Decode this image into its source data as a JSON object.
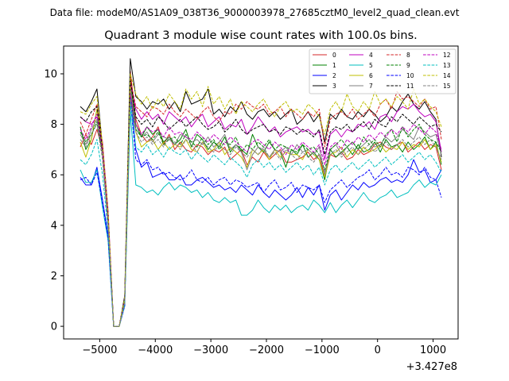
{
  "header": {
    "data_file": "Data file: modeM0/AS1A09_038T36_9000003978_27685cztM0_level2_quad_clean.evt"
  },
  "chart_data": {
    "type": "line",
    "title": "Quadrant 3 module wise count rates with 100.0s bins.",
    "xlabel": "",
    "ylabel": "",
    "x_offset_label": "+3.427e8",
    "xlim": [
      -5650,
      1450
    ],
    "ylim": [
      -0.5,
      11.1
    ],
    "xticks": [
      -5000,
      -4000,
      -3000,
      -2000,
      -1000,
      0,
      1000
    ],
    "xtick_labels": [
      "−5000",
      "−4000",
      "−3000",
      "−2000",
      "−1000",
      "0",
      "1000"
    ],
    "yticks": [
      0,
      2,
      4,
      6,
      8,
      10
    ],
    "ytick_labels": [
      "0",
      "2",
      "4",
      "6",
      "8",
      "10"
    ],
    "grid": false,
    "legend_position": "top-right",
    "legend_columns": 4,
    "x": [
      -5350,
      -5250,
      -5150,
      -5050,
      -4950,
      -4850,
      -4750,
      -4650,
      -4550,
      -4450,
      -4350,
      -4250,
      -4150,
      -4050,
      -3950,
      -3850,
      -3750,
      -3650,
      -3550,
      -3450,
      -3350,
      -3250,
      -3150,
      -3050,
      -2950,
      -2850,
      -2750,
      -2650,
      -2550,
      -2450,
      -2350,
      -2250,
      -2150,
      -2050,
      -1950,
      -1850,
      -1750,
      -1650,
      -1550,
      -1450,
      -1350,
      -1250,
      -1150,
      -1050,
      -950,
      -850,
      -750,
      -650,
      -550,
      -450,
      -350,
      -250,
      -150,
      -50,
      50,
      150,
      250,
      350,
      450,
      550,
      650,
      750,
      850,
      950,
      1050,
      1150
    ],
    "series": [
      {
        "name": "0",
        "color": "#d62728",
        "dash": "solid",
        "values": [
          7.1,
          7.6,
          7.2,
          7.8,
          7.0,
          4.2,
          0.0,
          0.0,
          1.0,
          10.1,
          8.2,
          7.6,
          7.3,
          7.5,
          7.9,
          7.2,
          7.6,
          7.0,
          7.3,
          7.0,
          6.9,
          7.2,
          7.1,
          6.8,
          7.0,
          6.9,
          7.1,
          6.6,
          6.8,
          7.0,
          6.4,
          6.7,
          6.5,
          6.9,
          6.6,
          6.8,
          7.0,
          6.5,
          6.5,
          6.6,
          6.7,
          6.9,
          6.6,
          6.8,
          5.9,
          6.8,
          6.7,
          6.9,
          6.6,
          6.7,
          7.0,
          6.8,
          6.9,
          7.2,
          7.3,
          7.1,
          7.0,
          7.2,
          7.3,
          6.9,
          7.1,
          7.3,
          7.0,
          7.2,
          7.1,
          6.2
        ]
      },
      {
        "name": "1",
        "color": "#008000",
        "dash": "solid",
        "values": [
          7.9,
          7.0,
          7.4,
          8.6,
          7.2,
          4.0,
          0.0,
          0.0,
          1.1,
          9.7,
          8.0,
          7.5,
          7.9,
          7.6,
          7.8,
          7.3,
          7.5,
          7.2,
          7.4,
          7.8,
          7.1,
          7.6,
          7.4,
          7.0,
          7.3,
          7.1,
          7.5,
          6.9,
          7.2,
          7.0,
          6.8,
          7.6,
          7.1,
          6.9,
          7.3,
          7.0,
          6.9,
          6.3,
          7.0,
          6.8,
          7.2,
          6.7,
          6.9,
          6.6,
          5.8,
          7.0,
          6.7,
          6.9,
          7.1,
          6.8,
          7.2,
          6.9,
          7.0,
          7.3,
          6.9,
          7.4,
          7.1,
          7.2,
          6.9,
          7.3,
          7.0,
          7.2,
          7.5,
          7.0,
          7.3,
          6.4
        ]
      },
      {
        "name": "2",
        "color": "#0000ff",
        "dash": "solid",
        "values": [
          5.9,
          5.6,
          5.6,
          6.3,
          5.0,
          3.6,
          0.0,
          0.0,
          0.9,
          9.4,
          7.0,
          6.3,
          6.5,
          5.9,
          6.0,
          6.1,
          5.8,
          5.8,
          6.0,
          5.6,
          5.6,
          5.8,
          5.9,
          5.7,
          5.5,
          5.6,
          5.4,
          5.5,
          5.3,
          5.6,
          5.4,
          5.2,
          5.6,
          5.3,
          5.1,
          5.4,
          5.2,
          5.0,
          5.2,
          5.5,
          5.1,
          5.5,
          5.2,
          5.6,
          4.6,
          5.2,
          5.4,
          5.0,
          5.3,
          5.6,
          5.4,
          5.7,
          5.5,
          5.6,
          5.8,
          5.9,
          5.7,
          5.8,
          5.7,
          6.0,
          6.6,
          6.1,
          6.2,
          5.7,
          5.8,
          6.2
        ]
      },
      {
        "name": "3",
        "color": "#000000",
        "dash": "solid",
        "values": [
          8.7,
          8.5,
          8.9,
          9.4,
          7.1,
          4.4,
          0.0,
          0.0,
          1.2,
          10.6,
          9.1,
          8.9,
          8.6,
          8.9,
          8.8,
          9.0,
          8.6,
          8.9,
          8.5,
          9.3,
          8.8,
          8.9,
          9.0,
          9.4,
          8.4,
          8.6,
          8.3,
          8.7,
          8.5,
          8.9,
          8.4,
          8.2,
          8.5,
          8.6,
          8.3,
          8.5,
          8.2,
          8.4,
          8.6,
          8.0,
          8.2,
          8.5,
          8.1,
          8.4,
          7.3,
          8.4,
          8.2,
          8.6,
          8.3,
          8.2,
          8.5,
          8.3,
          8.6,
          8.4,
          8.1,
          8.3,
          8.7,
          8.5,
          8.9,
          9.2,
          8.8,
          8.6,
          8.9,
          8.5,
          8.2,
          6.7
        ]
      },
      {
        "name": "4",
        "color": "#bf00bf",
        "dash": "solid",
        "values": [
          8.3,
          8.1,
          8.0,
          8.3,
          7.3,
          4.6,
          0.0,
          0.0,
          1.1,
          9.6,
          8.6,
          8.2,
          8.5,
          8.2,
          8.4,
          8.0,
          8.5,
          8.3,
          8.1,
          8.3,
          7.9,
          8.2,
          8.4,
          7.9,
          8.1,
          8.3,
          7.8,
          8.0,
          7.9,
          8.2,
          7.6,
          7.9,
          8.3,
          8.0,
          7.7,
          7.9,
          7.5,
          7.7,
          7.8,
          7.9,
          7.7,
          7.8,
          7.6,
          7.7,
          6.6,
          7.6,
          7.8,
          7.5,
          7.8,
          7.7,
          8.0,
          7.9,
          8.1,
          7.8,
          8.3,
          8.4,
          8.1,
          8.5,
          8.7,
          8.6,
          8.8,
          8.5,
          8.3,
          8.4,
          8.1,
          6.9
        ]
      },
      {
        "name": "5",
        "color": "#00bfbf",
        "dash": "solid",
        "values": [
          6.2,
          5.7,
          5.7,
          6.2,
          4.7,
          3.4,
          0.0,
          0.0,
          0.8,
          8.5,
          5.6,
          5.5,
          5.3,
          5.4,
          5.2,
          5.5,
          5.7,
          5.4,
          5.6,
          5.5,
          5.3,
          5.4,
          5.1,
          5.3,
          5.0,
          4.9,
          5.1,
          4.9,
          5.0,
          4.4,
          4.4,
          4.6,
          5.0,
          4.7,
          4.5,
          4.8,
          4.6,
          4.8,
          4.5,
          4.7,
          4.8,
          4.6,
          5.0,
          4.8,
          4.5,
          4.9,
          4.5,
          4.8,
          5.0,
          4.7,
          5.0,
          5.3,
          5.0,
          4.9,
          5.1,
          5.2,
          5.4,
          5.1,
          5.2,
          5.3,
          5.6,
          5.8,
          5.5,
          5.7,
          5.6,
          6.0
        ]
      },
      {
        "name": "6",
        "color": "#bfbf00",
        "dash": "solid",
        "values": [
          7.3,
          6.7,
          7.4,
          8.6,
          6.9,
          4.2,
          0.0,
          0.0,
          1.0,
          9.5,
          7.7,
          7.1,
          7.3,
          7.4,
          7.0,
          7.3,
          7.0,
          7.2,
          7.1,
          7.4,
          7.0,
          6.9,
          7.3,
          6.9,
          7.0,
          7.3,
          6.8,
          7.1,
          6.9,
          6.7,
          6.3,
          7.0,
          6.8,
          7.0,
          6.6,
          7.0,
          6.7,
          6.9,
          6.8,
          6.8,
          6.6,
          7.0,
          6.8,
          6.6,
          5.9,
          6.8,
          6.9,
          7.1,
          6.7,
          7.0,
          6.8,
          7.1,
          6.9,
          7.0,
          7.2,
          6.9,
          7.1,
          7.0,
          7.3,
          7.0,
          7.2,
          7.1,
          7.4,
          7.0,
          7.2,
          6.5
        ]
      },
      {
        "name": "7",
        "color": "#808080",
        "dash": "solid",
        "values": [
          7.6,
          7.2,
          7.8,
          8.2,
          6.9,
          4.3,
          0.0,
          0.0,
          1.0,
          9.4,
          7.8,
          7.5,
          7.7,
          7.3,
          7.6,
          7.5,
          7.4,
          7.2,
          7.6,
          7.5,
          7.3,
          7.4,
          7.2,
          7.5,
          7.1,
          7.3,
          7.6,
          7.0,
          7.2,
          6.9,
          6.2,
          6.8,
          7.1,
          7.0,
          6.7,
          7.0,
          6.9,
          7.1,
          6.8,
          7.2,
          6.9,
          7.0,
          6.8,
          7.1,
          6.0,
          7.0,
          7.2,
          6.8,
          7.1,
          7.3,
          7.0,
          7.2,
          7.4,
          7.1,
          7.2,
          7.5,
          7.3,
          7.5,
          7.8,
          7.6,
          7.4,
          7.9,
          7.7,
          7.5,
          7.6,
          6.8
        ]
      },
      {
        "name": "8",
        "color": "#d62728",
        "dash": "dashed",
        "values": [
          8.1,
          7.6,
          8.2,
          8.8,
          7.2,
          4.5,
          0.0,
          0.0,
          1.1,
          9.8,
          8.7,
          8.5,
          8.3,
          8.7,
          8.6,
          8.4,
          8.8,
          8.5,
          8.3,
          8.6,
          8.4,
          8.2,
          8.5,
          8.7,
          8.3,
          8.1,
          8.5,
          8.4,
          8.8,
          8.6,
          8.9,
          8.7,
          8.6,
          8.8,
          8.4,
          8.5,
          8.7,
          8.3,
          8.6,
          8.4,
          8.2,
          8.5,
          8.3,
          8.6,
          7.1,
          8.2,
          8.4,
          8.5,
          8.3,
          8.6,
          8.2,
          8.4,
          8.6,
          8.3,
          8.8,
          9.0,
          8.6,
          9.3,
          9.0,
          9.1,
          8.9,
          8.7,
          9.0,
          8.6,
          8.7,
          7.4
        ]
      },
      {
        "name": "9",
        "color": "#008000",
        "dash": "dashed",
        "values": [
          7.7,
          7.3,
          7.6,
          8.1,
          6.8,
          4.1,
          0.0,
          0.0,
          1.0,
          9.1,
          7.8,
          7.5,
          7.6,
          7.4,
          7.7,
          7.2,
          7.4,
          7.5,
          7.2,
          7.6,
          7.3,
          7.1,
          7.5,
          7.2,
          7.4,
          7.0,
          7.3,
          7.2,
          7.5,
          6.9,
          7.2,
          7.0,
          7.3,
          7.1,
          7.4,
          7.0,
          7.2,
          7.1,
          7.0,
          6.9,
          7.2,
          7.0,
          7.1,
          6.8,
          6.2,
          7.0,
          7.2,
          7.4,
          7.1,
          7.3,
          7.0,
          7.5,
          7.2,
          7.4,
          7.1,
          7.6,
          7.8,
          7.3,
          7.9,
          7.5,
          7.8,
          8.0,
          7.6,
          7.4,
          7.3,
          6.9
        ]
      },
      {
        "name": "10",
        "color": "#0000ff",
        "dash": "dashed",
        "values": [
          5.8,
          5.9,
          5.6,
          6.1,
          4.9,
          3.5,
          0.0,
          0.0,
          0.8,
          9.0,
          6.6,
          6.4,
          6.6,
          6.2,
          6.3,
          6.0,
          6.1,
          5.9,
          5.8,
          5.9,
          6.2,
          5.8,
          5.7,
          5.9,
          5.6,
          5.8,
          5.9,
          5.6,
          5.8,
          5.7,
          5.5,
          5.6,
          5.7,
          5.3,
          5.6,
          5.8,
          5.4,
          5.5,
          5.7,
          5.3,
          5.6,
          5.5,
          5.4,
          5.6,
          4.9,
          5.4,
          5.6,
          5.8,
          5.5,
          5.7,
          5.9,
          6.0,
          6.2,
          5.8,
          6.0,
          6.3,
          6.0,
          6.1,
          5.9,
          6.3,
          6.2,
          6.0,
          6.3,
          5.9,
          5.8,
          5.1
        ]
      },
      {
        "name": "11",
        "color": "#000000",
        "dash": "dashed",
        "values": [
          8.3,
          8.1,
          8.5,
          8.7,
          7.0,
          4.4,
          0.0,
          0.0,
          1.1,
          9.8,
          8.3,
          8.0,
          8.2,
          7.9,
          8.3,
          8.1,
          7.8,
          8.0,
          8.2,
          7.9,
          8.1,
          8.3,
          8.0,
          7.8,
          7.9,
          8.1,
          7.7,
          7.9,
          8.2,
          7.8,
          7.6,
          7.8,
          7.9,
          8.0,
          7.7,
          7.8,
          7.6,
          7.9,
          7.8,
          7.6,
          7.8,
          7.7,
          7.5,
          7.8,
          6.8,
          7.7,
          7.9,
          7.8,
          8.0,
          7.7,
          7.9,
          8.1,
          7.8,
          8.2,
          8.0,
          7.9,
          8.3,
          8.1,
          8.4,
          8.2,
          8.0,
          8.3,
          8.1,
          7.9,
          8.0,
          7.7
        ]
      },
      {
        "name": "12",
        "color": "#bf00bf",
        "dash": "dashed",
        "values": [
          7.8,
          7.4,
          7.9,
          8.4,
          6.9,
          4.2,
          0.0,
          0.0,
          1.0,
          9.2,
          8.0,
          7.6,
          7.9,
          7.7,
          7.8,
          7.5,
          7.9,
          7.6,
          7.7,
          7.5,
          7.4,
          7.7,
          7.5,
          7.3,
          7.6,
          7.4,
          7.2,
          7.5,
          7.3,
          7.1,
          6.9,
          7.3,
          7.4,
          7.2,
          7.0,
          7.3,
          7.1,
          6.8,
          7.2,
          7.0,
          7.3,
          7.1,
          6.9,
          7.2,
          6.4,
          7.1,
          7.3,
          7.0,
          7.4,
          7.2,
          7.5,
          7.3,
          7.6,
          7.4,
          7.7,
          7.5,
          7.8,
          7.6,
          7.9,
          7.7,
          8.0,
          7.8,
          7.6,
          7.9,
          7.7,
          7.0
        ]
      },
      {
        "name": "13",
        "color": "#00bfbf",
        "dash": "dashed",
        "values": [
          6.6,
          6.4,
          6.8,
          7.4,
          6.0,
          3.8,
          0.0,
          0.0,
          0.9,
          8.8,
          7.1,
          6.9,
          7.2,
          6.8,
          7.0,
          6.7,
          7.1,
          6.9,
          6.8,
          7.0,
          6.6,
          6.9,
          6.7,
          6.5,
          6.8,
          6.6,
          6.4,
          6.7,
          6.5,
          6.3,
          5.9,
          6.4,
          6.6,
          6.3,
          6.5,
          6.2,
          6.4,
          6.1,
          6.3,
          6.5,
          6.2,
          6.4,
          6.0,
          6.3,
          5.6,
          6.2,
          6.4,
          6.1,
          6.3,
          6.5,
          6.2,
          6.4,
          6.6,
          6.3,
          6.5,
          6.7,
          6.4,
          6.6,
          6.8,
          6.5,
          6.7,
          6.9,
          6.6,
          6.8,
          6.5,
          6.1
        ]
      },
      {
        "name": "14",
        "color": "#bfbf00",
        "dash": "dashed",
        "values": [
          8.5,
          8.4,
          8.8,
          9.1,
          7.2,
          4.5,
          0.0,
          0.0,
          1.1,
          10.0,
          9.2,
          8.8,
          9.1,
          8.6,
          9.0,
          8.7,
          9.2,
          8.9,
          8.6,
          9.4,
          9.0,
          9.3,
          8.7,
          9.5,
          8.8,
          9.1,
          8.6,
          9.0,
          8.4,
          8.9,
          8.7,
          8.5,
          8.8,
          9.0,
          8.6,
          8.3,
          8.7,
          8.9,
          8.5,
          8.6,
          8.4,
          8.8,
          8.6,
          8.3,
          7.6,
          8.6,
          8.9,
          8.5,
          9.2,
          8.7,
          8.5,
          8.9,
          8.6,
          9.3,
          8.8,
          9.0,
          8.7,
          9.1,
          8.9,
          8.6,
          9.4,
          8.8,
          9.0,
          8.7,
          8.5,
          7.9
        ]
      },
      {
        "name": "15",
        "color": "#808080",
        "dash": "dashed",
        "values": [
          7.4,
          7.1,
          7.6,
          8.0,
          6.6,
          4.0,
          0.0,
          0.0,
          0.9,
          9.0,
          7.7,
          7.3,
          7.5,
          7.2,
          7.4,
          7.1,
          7.5,
          7.3,
          7.0,
          7.4,
          7.2,
          6.9,
          7.3,
          7.1,
          6.9,
          7.2,
          7.0,
          6.8,
          7.1,
          6.9,
          6.7,
          7.0,
          6.8,
          7.1,
          6.7,
          6.9,
          6.6,
          7.0,
          6.8,
          6.6,
          6.9,
          6.7,
          6.5,
          6.8,
          6.1,
          6.8,
          7.0,
          6.7,
          6.9,
          7.1,
          6.8,
          7.0,
          7.2,
          6.9,
          7.1,
          7.3,
          7.0,
          7.2,
          7.4,
          7.1,
          7.3,
          7.5,
          7.2,
          7.4,
          7.1,
          6.6
        ]
      }
    ]
  }
}
